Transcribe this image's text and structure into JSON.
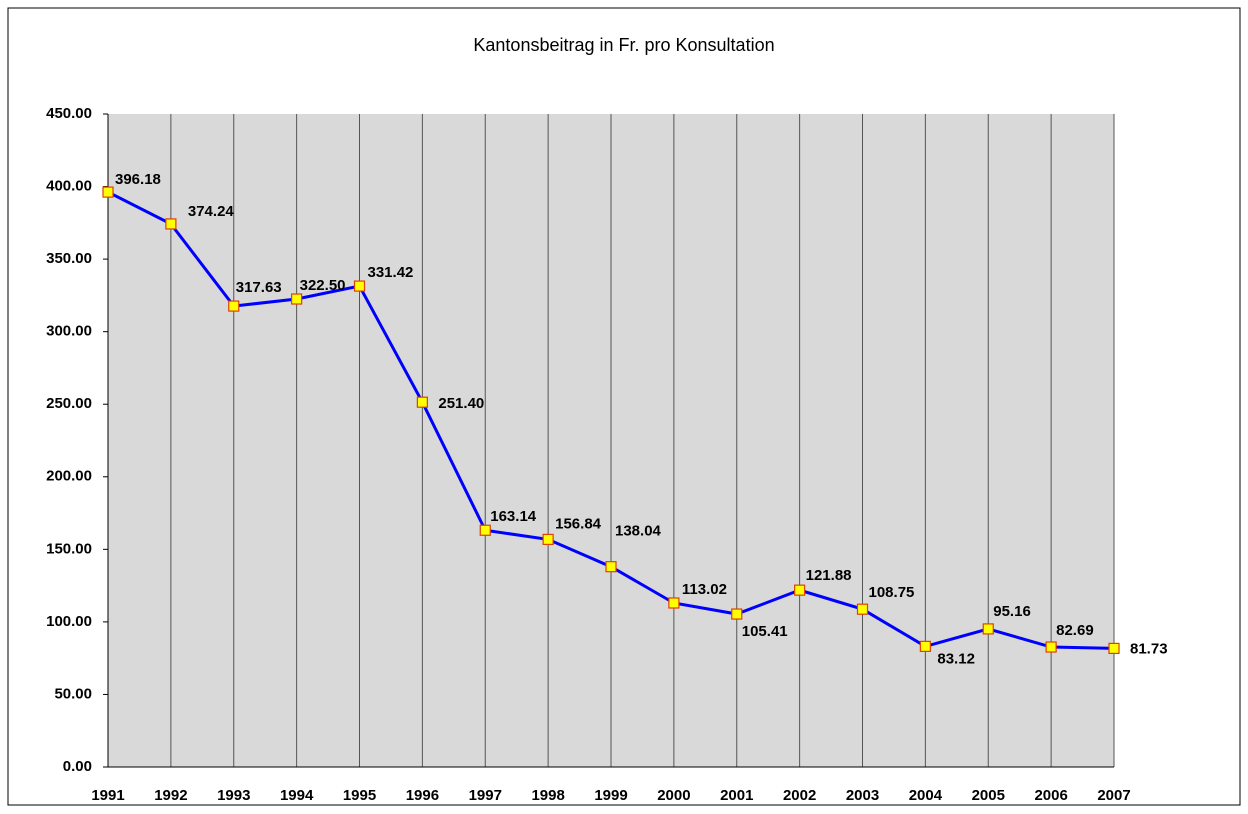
{
  "chart_data": {
    "type": "line",
    "title": "Kantonsbeitrag in Fr. pro Konsultation",
    "categories": [
      "1991",
      "1992",
      "1993",
      "1994",
      "1995",
      "1996",
      "1997",
      "1998",
      "1999",
      "2000",
      "2001",
      "2002",
      "2003",
      "2004",
      "2005",
      "2006",
      "2007"
    ],
    "series": [
      {
        "name": null,
        "color": "#0000ff",
        "values": [
          396.18,
          374.24,
          317.63,
          322.5,
          331.42,
          251.4,
          163.14,
          156.84,
          138.04,
          113.02,
          105.41,
          121.88,
          108.75,
          83.12,
          95.16,
          82.69,
          81.73
        ],
        "value_labels": [
          "396.18",
          "374.24",
          "317.63",
          "322.50",
          "331.42",
          "251.40",
          "163.14",
          "156.84",
          "138.04",
          "113.02",
          "105.41",
          "121.88",
          "108.75",
          "83.12",
          "95.16",
          "82.69",
          "81.73"
        ]
      }
    ],
    "ylim": [
      0,
      450
    ],
    "yticks": [
      {
        "value": 0,
        "label": "0.00"
      },
      {
        "value": 50,
        "label": "50.00"
      },
      {
        "value": 100,
        "label": "100.00"
      },
      {
        "value": 150,
        "label": "150.00"
      },
      {
        "value": 200,
        "label": "200.00"
      },
      {
        "value": 250,
        "label": "250.00"
      },
      {
        "value": 300,
        "label": "300.00"
      },
      {
        "value": 350,
        "label": "350.00"
      },
      {
        "value": 400,
        "label": "400.00"
      },
      {
        "value": 450,
        "label": "450.00"
      }
    ],
    "grid": "x"
  }
}
